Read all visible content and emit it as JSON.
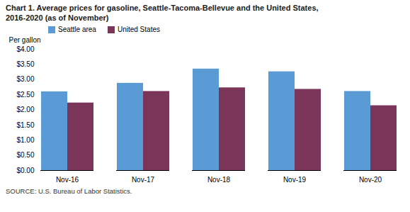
{
  "chart_data": {
    "type": "bar",
    "title": "Chart 1. Average prices for gasoline, Seattle-Tacoma-Bellevue and the United States,",
    "subtitle": "2016-2020  (as of November)",
    "ylabel": "Per gallon",
    "source": "SOURCE: U.S. Bureau of Labor Statistics.",
    "categories": [
      "Nov-16",
      "Nov-17",
      "Nov-18",
      "Nov-19",
      "Nov-20"
    ],
    "series": [
      {
        "name": "Seattle area",
        "color": "#5B9BD5",
        "values": [
          2.6,
          2.88,
          3.35,
          3.26,
          2.61
        ]
      },
      {
        "name": "United States",
        "color": "#7B3558",
        "values": [
          2.23,
          2.61,
          2.73,
          2.68,
          2.14
        ]
      }
    ],
    "ylim": [
      0,
      4.0
    ],
    "yticks": [
      {
        "value": 0.0,
        "label": "$0.00"
      },
      {
        "value": 0.5,
        "label": "$0.50"
      },
      {
        "value": 1.0,
        "label": "$1.00"
      },
      {
        "value": 1.5,
        "label": "$1.50"
      },
      {
        "value": 2.0,
        "label": "$2.00"
      },
      {
        "value": 2.5,
        "label": "$2.50"
      },
      {
        "value": 3.0,
        "label": "$3.00"
      },
      {
        "value": 3.5,
        "label": "$3.50"
      },
      {
        "value": 4.0,
        "label": "$4.00"
      }
    ],
    "grid": false,
    "legend": "upper left"
  }
}
